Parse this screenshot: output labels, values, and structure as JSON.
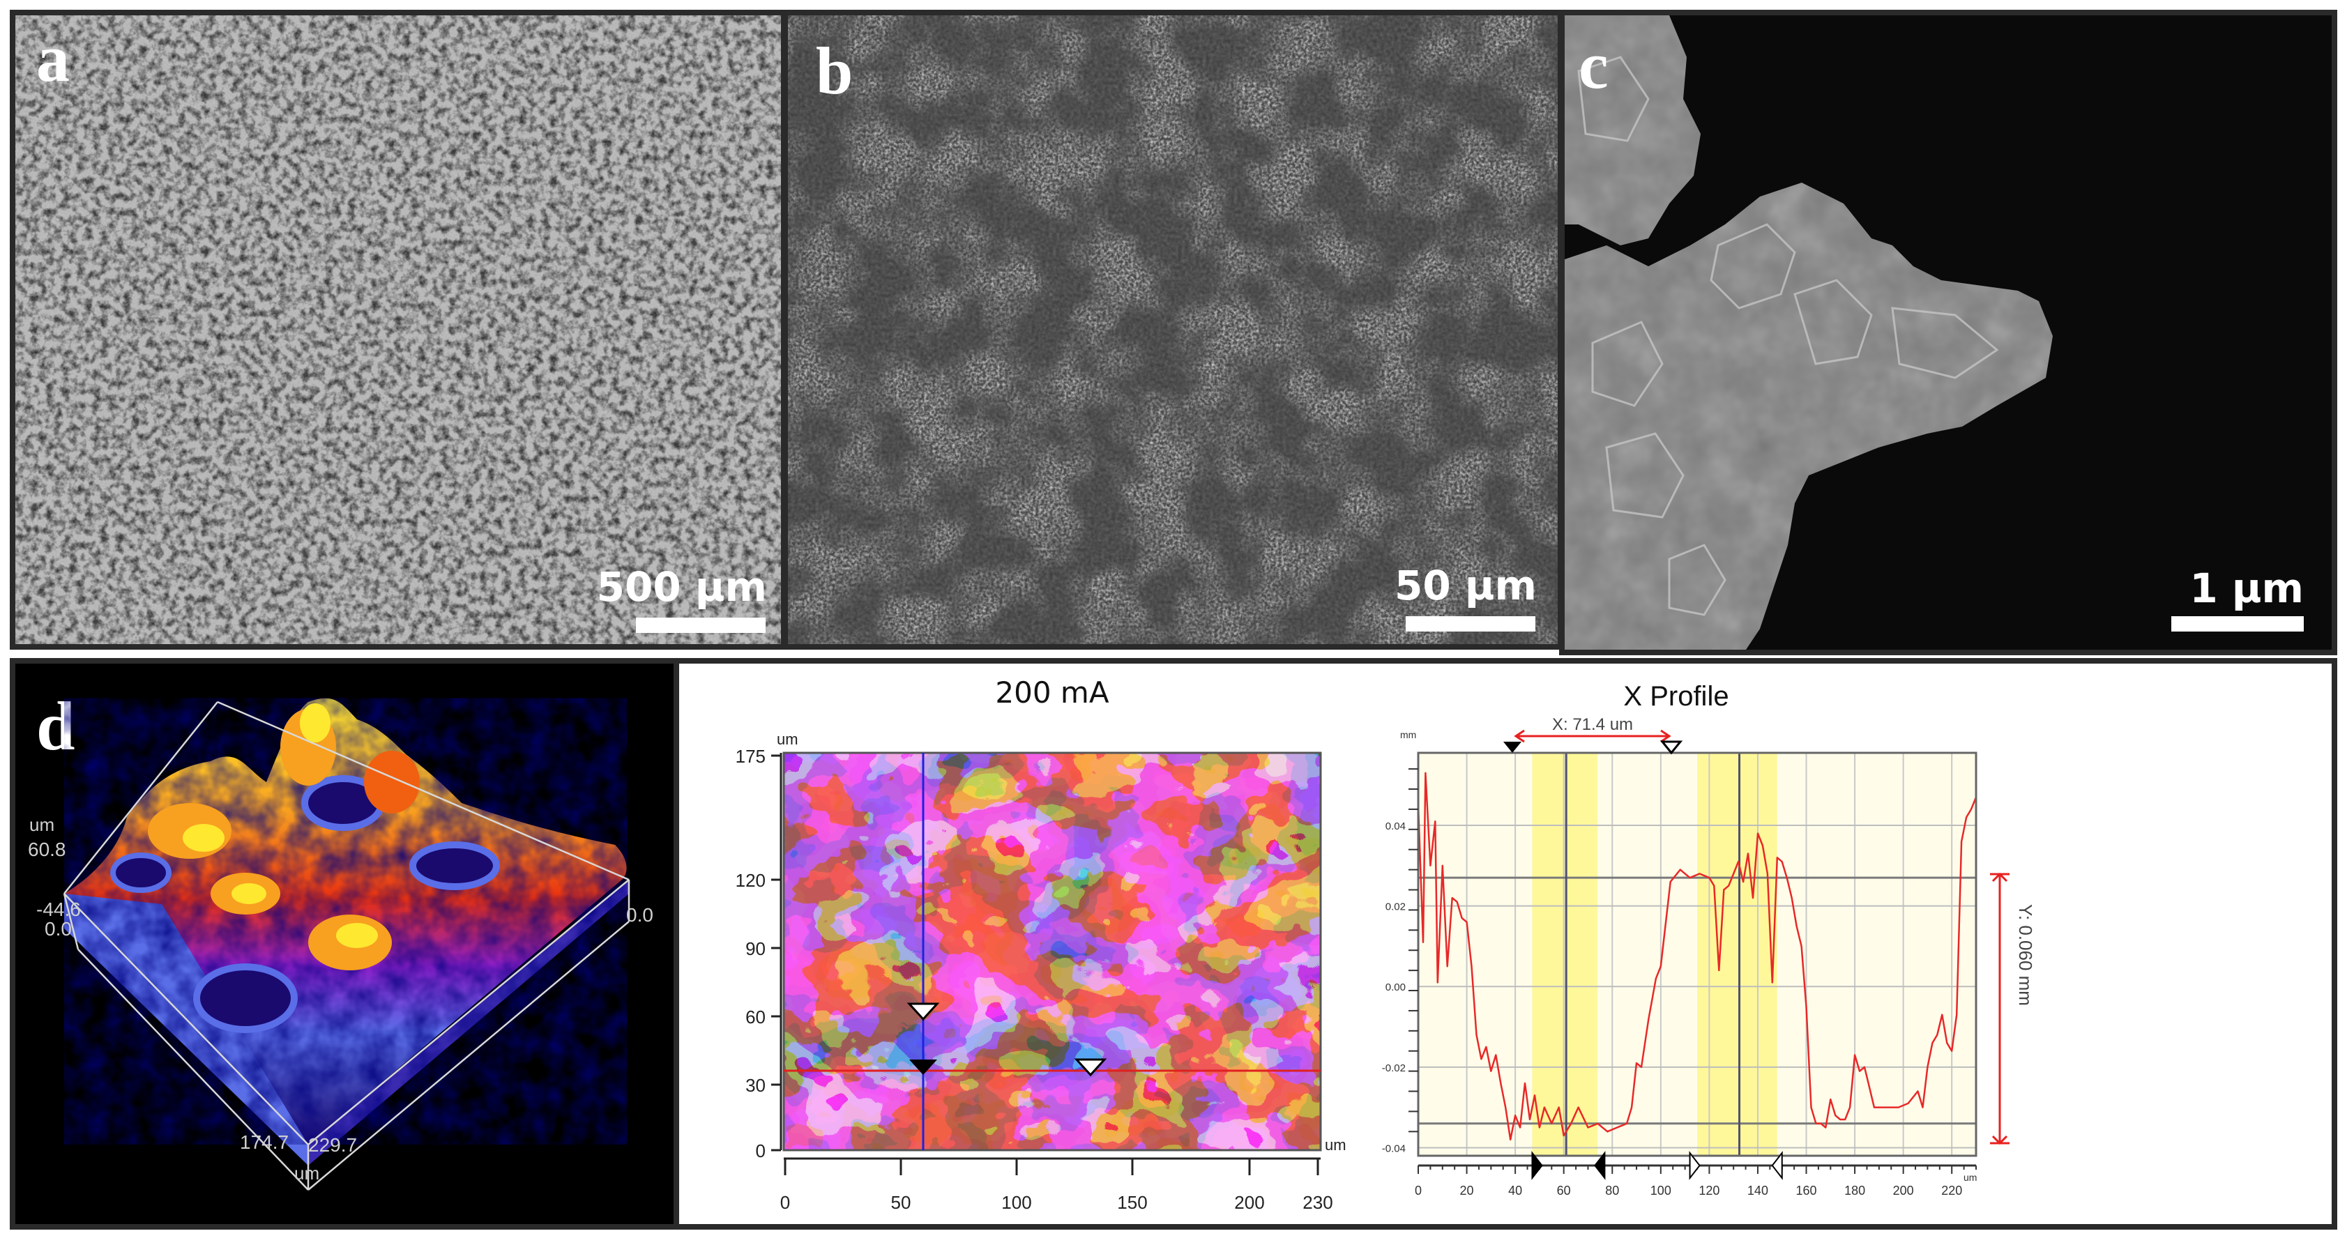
{
  "figure": {
    "panels": [
      {
        "letter": "a",
        "type": "SEM image",
        "scale_bar": "500 µm",
        "description": "low-magnification porous honeycomb-like surface"
      },
      {
        "letter": "b",
        "type": "SEM image",
        "scale_bar": "50 µm",
        "description": "cauliflower-like dendritic agglomerates"
      },
      {
        "letter": "c",
        "type": "SEM image",
        "scale_bar": "1 µm",
        "description": "high-magnification stacked plate-like crystallites"
      },
      {
        "letter": "d",
        "type": "profilometry",
        "description": "3D surface topography, 2D height map, X profile"
      }
    ]
  },
  "panel_d": {
    "letter": "d",
    "surface3d": {
      "z_unit": "um",
      "z_max": "60.8",
      "z_min": "-44.6",
      "origin_left": "0.0",
      "origin_right": "0.0",
      "y_extent": "174.7",
      "x_extent": "229.7",
      "xy_unit": "um"
    },
    "heightmap": {
      "title": "200 mA",
      "y_unit": "um",
      "x_unit": "um",
      "y_ticks": [
        "175",
        "120",
        "90",
        "60",
        "30",
        "0"
      ],
      "x_ticks": [
        "0",
        "50",
        "100",
        "150",
        "200",
        "230"
      ],
      "cursor_x": 60,
      "cursor_y": 35
    },
    "profile": {
      "title": "X Profile",
      "x_measure": "X: 71.4 um",
      "y_measure": "Y: 0.060 mm",
      "y_unit": "mm",
      "x_unit": "um",
      "y_ticks": [
        "0.04",
        "0.02",
        "0.00",
        "-0.02",
        "-0.04"
      ],
      "x_ticks": [
        "0",
        "20",
        "40",
        "60",
        "80",
        "100",
        "120",
        "140",
        "160",
        "180",
        "200",
        "220"
      ]
    }
  },
  "chart_data": [
    {
      "type": "heatmap",
      "title": "200 mA",
      "xlabel": "um",
      "ylabel": "um",
      "xlim": [
        0,
        230
      ],
      "ylim": [
        0,
        175
      ],
      "x_ticks": [
        0,
        50,
        100,
        150,
        200,
        230
      ],
      "y_ticks": [
        0,
        30,
        60,
        90,
        120,
        175
      ],
      "colormap": [
        "#1a0a6e",
        "#5a6ee8",
        "#8a1ec8",
        "#e01818",
        "#f06010",
        "#f8a020",
        "#ffe830"
      ],
      "annotations": [
        "vertical blue cursor at x≈60",
        "horizontal red cursor at y≈35",
        "white markers at (60,82) and (130,40)",
        "black marker at (60,38)"
      ]
    },
    {
      "type": "line",
      "title": "X Profile",
      "xlabel": "um",
      "ylabel": "mm",
      "xlim": [
        0,
        230
      ],
      "ylim": [
        -0.042,
        0.058
      ],
      "grid": true,
      "series": [
        {
          "name": "height profile",
          "x": [
            0,
            2,
            3,
            5,
            7,
            8,
            10,
            12,
            14,
            16,
            18,
            20,
            22,
            24,
            26,
            28,
            30,
            32,
            34,
            36,
            38,
            40,
            42,
            44,
            46,
            48,
            50,
            52,
            55,
            58,
            60,
            63,
            66,
            70,
            74,
            78,
            82,
            86,
            88,
            90,
            92,
            95,
            98,
            100,
            104,
            108,
            112,
            116,
            120,
            122,
            124,
            126,
            128,
            130,
            132,
            134,
            136,
            138,
            140,
            142,
            144,
            146,
            148,
            150,
            152,
            154,
            156,
            158,
            160,
            162,
            164,
            166,
            168,
            170,
            172,
            174,
            176,
            178,
            180,
            182,
            184,
            186,
            188,
            190,
            194,
            198,
            202,
            206,
            208,
            210,
            212,
            214,
            216,
            218,
            220,
            222,
            224,
            226,
            228,
            230
          ],
          "y": [
            0.045,
            0.011,
            0.053,
            0.03,
            0.041,
            0.001,
            0.03,
            0.005,
            0.022,
            0.021,
            0.017,
            0.016,
            0.005,
            -0.012,
            -0.018,
            -0.015,
            -0.021,
            -0.017,
            -0.024,
            -0.03,
            -0.038,
            -0.032,
            -0.035,
            -0.024,
            -0.033,
            -0.027,
            -0.035,
            -0.03,
            -0.034,
            -0.03,
            -0.037,
            -0.034,
            -0.03,
            -0.035,
            -0.034,
            -0.036,
            -0.035,
            -0.034,
            -0.03,
            -0.019,
            -0.02,
            -0.008,
            0.002,
            0.005,
            0.026,
            0.029,
            0.027,
            0.028,
            0.027,
            0.025,
            0.004,
            0.024,
            0.025,
            0.028,
            0.031,
            0.026,
            0.033,
            0.022,
            0.038,
            0.035,
            0.028,
            0.001,
            0.032,
            0.031,
            0.027,
            0.022,
            0.015,
            0.01,
            -0.005,
            -0.03,
            -0.034,
            -0.034,
            -0.035,
            -0.028,
            -0.032,
            -0.033,
            -0.033,
            -0.03,
            -0.017,
            -0.021,
            -0.02,
            -0.025,
            -0.03,
            -0.03,
            -0.03,
            -0.03,
            -0.029,
            -0.026,
            -0.03,
            -0.02,
            -0.014,
            -0.012,
            -0.007,
            -0.014,
            -0.016,
            -0.007,
            0.036,
            0.042,
            0.044,
            0.047
          ]
        }
      ],
      "reference_lines_y": [
        0.027,
        -0.034
      ],
      "highlight_bands_x": [
        [
          47,
          74
        ],
        [
          115,
          148
        ]
      ],
      "cursors_x": [
        61,
        132.4
      ],
      "measurements": {
        "dx": "X: 71.4 um",
        "dy": "Y: 0.060 mm"
      }
    }
  ]
}
